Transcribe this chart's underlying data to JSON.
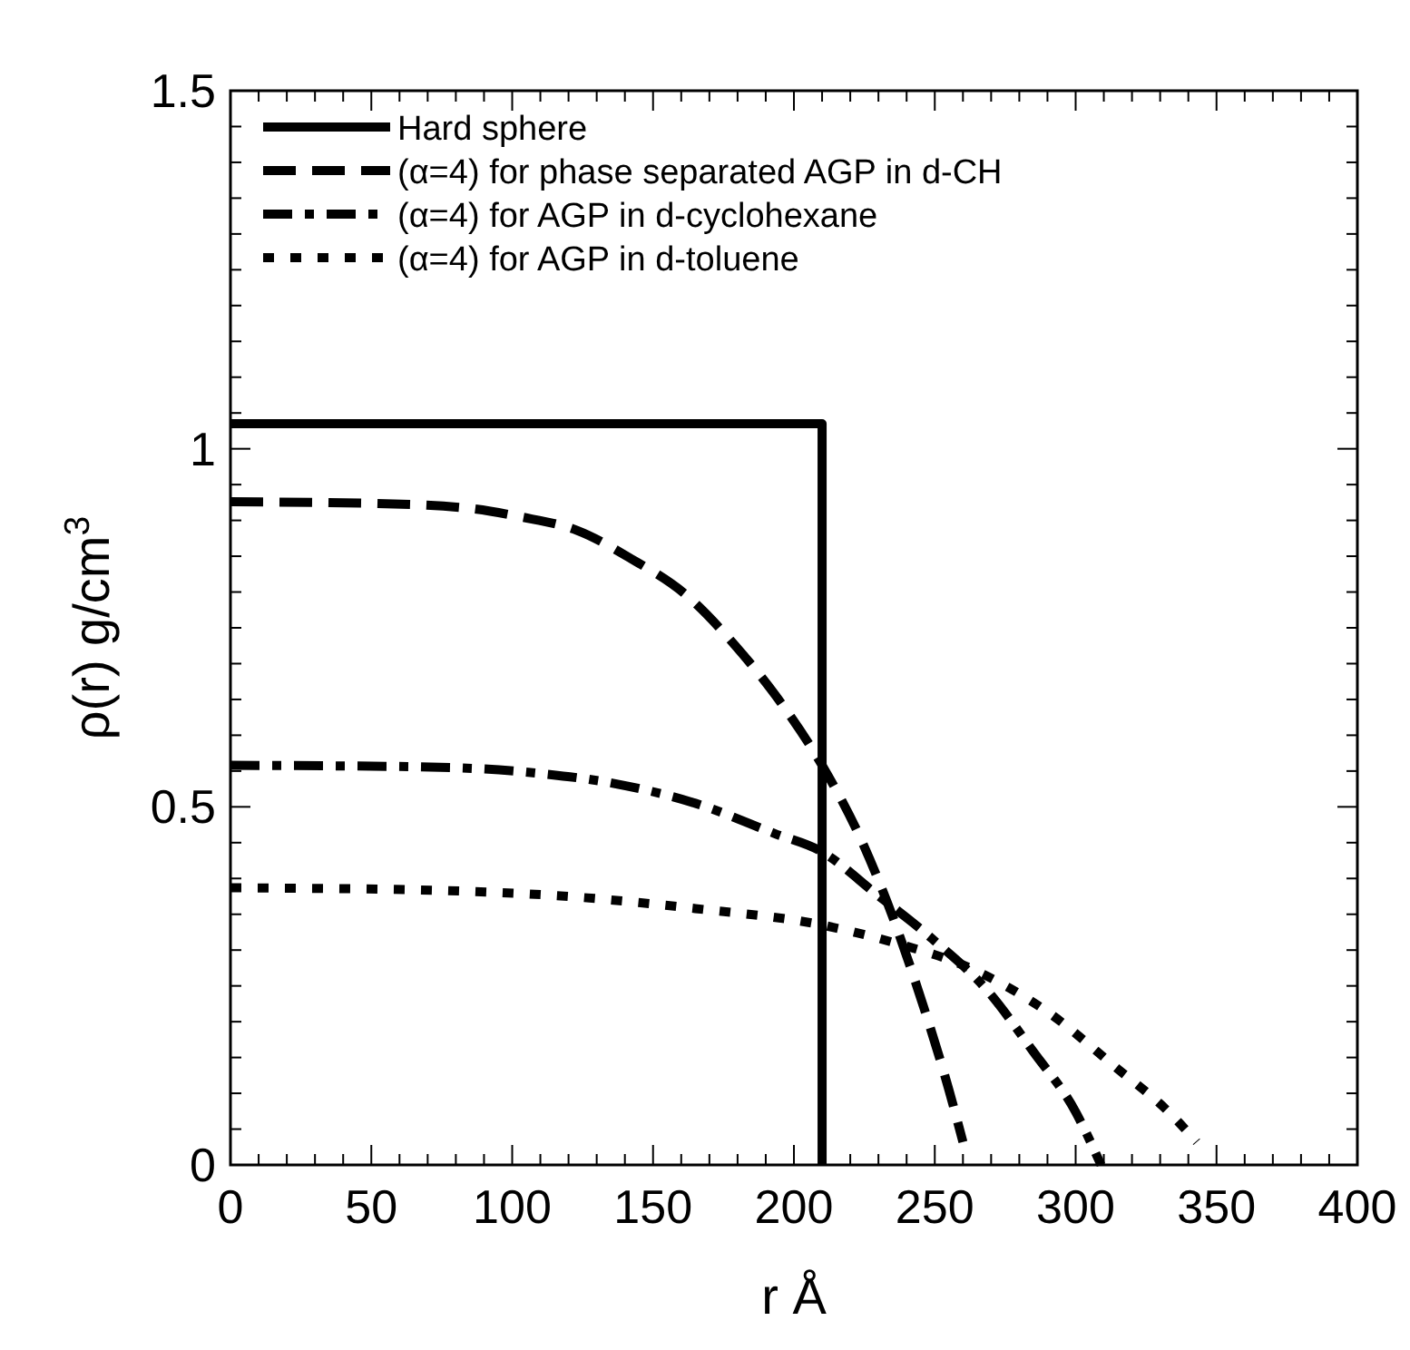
{
  "chart_data": {
    "type": "line",
    "xlabel": "r  Å",
    "ylabel": "ρ(r)  g/cm$^{3}$",
    "xlim": [
      0,
      400
    ],
    "ylim": [
      0,
      1.5
    ],
    "xticks": [
      0,
      {
        "value": 10,
        "label": null
      },
      {
        "value": 20,
        "label": null
      },
      {
        "value": 30,
        "label": null
      },
      {
        "value": 40,
        "label": null
      },
      50,
      {
        "value": 60,
        "label": null
      },
      {
        "value": 70,
        "label": null
      },
      {
        "value": 80,
        "label": null
      },
      {
        "value": 90,
        "label": null
      },
      100,
      {
        "value": 110,
        "label": null
      },
      {
        "value": 120,
        "label": null
      },
      {
        "value": 130,
        "label": null
      },
      {
        "value": 140,
        "label": null
      },
      150,
      {
        "value": 160,
        "label": null
      },
      {
        "value": 170,
        "label": null
      },
      {
        "value": 180,
        "label": null
      },
      {
        "value": 190,
        "label": null
      },
      200,
      {
        "value": 210,
        "label": null
      },
      {
        "value": 220,
        "label": null
      },
      {
        "value": 230,
        "label": null
      },
      {
        "value": 240,
        "label": null
      },
      250,
      {
        "value": 260,
        "label": null
      },
      {
        "value": 270,
        "label": null
      },
      {
        "value": 280,
        "label": null
      },
      {
        "value": 290,
        "label": null
      },
      300,
      {
        "value": 310,
        "label": null
      },
      {
        "value": 320,
        "label": null
      },
      {
        "value": 330,
        "label": null
      },
      {
        "value": 340,
        "label": null
      },
      350,
      {
        "value": 360,
        "label": null
      },
      {
        "value": 370,
        "label": null
      },
      {
        "value": 380,
        "label": null
      },
      {
        "value": 390,
        "label": null
      },
      400
    ],
    "yticks": [
      0,
      {
        "value": 0.05,
        "label": null
      },
      {
        "value": 0.1,
        "label": null
      },
      {
        "value": 0.15,
        "label": null
      },
      {
        "value": 0.2,
        "label": null
      },
      {
        "value": 0.25,
        "label": null
      },
      {
        "value": 0.3,
        "label": null
      },
      {
        "value": 0.35,
        "label": null
      },
      {
        "value": 0.4,
        "label": null
      },
      {
        "value": 0.45,
        "label": null
      },
      0.5,
      {
        "value": 0.55,
        "label": null
      },
      {
        "value": 0.6,
        "label": null
      },
      {
        "value": 0.65,
        "label": null
      },
      {
        "value": 0.7,
        "label": null
      },
      {
        "value": 0.75,
        "label": null
      },
      {
        "value": 0.8,
        "label": null
      },
      {
        "value": 0.85,
        "label": null
      },
      {
        "value": 0.9,
        "label": null
      },
      {
        "value": 0.95,
        "label": null
      },
      1,
      {
        "value": 1.05,
        "label": null
      },
      {
        "value": 1.1,
        "label": null
      },
      {
        "value": 1.15,
        "label": null
      },
      {
        "value": 1.2,
        "label": null
      },
      {
        "value": 1.25,
        "label": null
      },
      {
        "value": 1.3,
        "label": null
      },
      {
        "value": 1.35,
        "label": null
      },
      {
        "value": 1.4,
        "label": null
      },
      {
        "value": 1.45,
        "label": null
      },
      1.5
    ],
    "grid": false,
    "legend": "top left",
    "marker": "none",
    "series": [
      {
        "name": "Hard sphere",
        "color": "#000000",
        "line_style": "solid",
        "x": [
          0,
          210,
          210
        ],
        "values": [
          1.035,
          1.035,
          0
        ]
      },
      {
        "name": "(α=4) for phase separated AGP in d-CH",
        "color": "#000000",
        "line_style": "dashed",
        "x": [
          0,
          47,
          82,
          103,
          123,
          142,
          162,
          179,
          196,
          210,
          224,
          235,
          246,
          255,
          260
        ],
        "values": [
          0.926,
          0.924,
          0.918,
          0.905,
          0.886,
          0.847,
          0.795,
          0.726,
          0.642,
          0.558,
          0.453,
          0.347,
          0.221,
          0.105,
          0.032
        ]
      },
      {
        "name": "(α=4) for AGP in d-cyclohexane",
        "color": "#000000",
        "line_style": "dashdot",
        "x": [
          0,
          67,
          109,
          137,
          165,
          193,
          210,
          229,
          249,
          269,
          285,
          300,
          309
        ],
        "values": [
          0.558,
          0.556,
          0.547,
          0.532,
          0.505,
          0.463,
          0.437,
          0.379,
          0.316,
          0.242,
          0.158,
          0.074,
          0
        ]
      },
      {
        "name": "(α=4) for AGP in d-toluene",
        "color": "#000000",
        "line_style": "dotted",
        "x": [
          0,
          67,
          123,
          165,
          210,
          235,
          263,
          291,
          314,
          333,
          343
        ],
        "values": [
          0.387,
          0.384,
          0.374,
          0.358,
          0.335,
          0.311,
          0.274,
          0.211,
          0.137,
          0.074,
          0.032
        ]
      }
    ]
  }
}
